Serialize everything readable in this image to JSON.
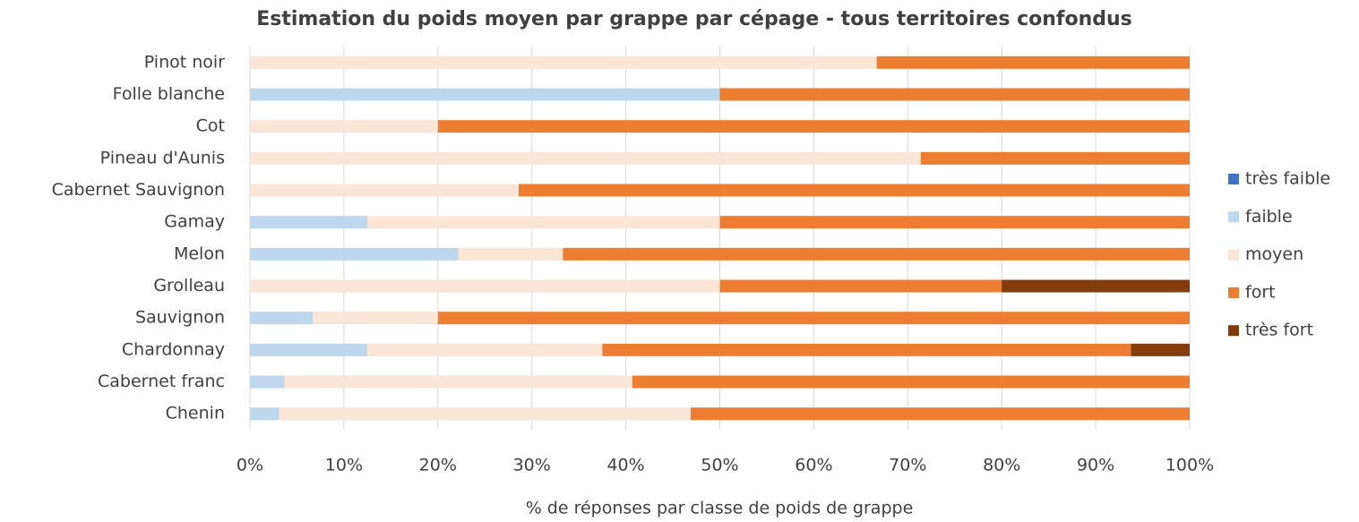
{
  "chart_data": {
    "type": "stacked_bar",
    "orientation": "horizontal",
    "title": "Estimation du poids moyen par grappe par cépage - tous territoires confondus",
    "xlabel": "% de réponses par classe de poids de grappe",
    "categories": [
      "Pinot noir",
      "Folle blanche",
      "Cot",
      "Pineau d'Aunis",
      "Cabernet Sauvignon",
      "Gamay",
      "Melon",
      "Grolleau",
      "Sauvignon",
      "Chardonnay",
      "Cabernet franc",
      "Chenin"
    ],
    "series": [
      {
        "name": "très faible",
        "color": "#4472c4",
        "values": [
          0,
          0,
          0,
          0,
          0,
          0,
          0,
          0,
          0,
          0,
          0,
          0
        ]
      },
      {
        "name": "faible",
        "color": "#bdd7ee",
        "values": [
          0,
          50,
          0,
          0,
          0,
          12.5,
          22.2,
          0,
          6.7,
          12.5,
          3.7,
          3.1
        ]
      },
      {
        "name": "moyen",
        "color": "#fbe5d6",
        "values": [
          66.7,
          0,
          20,
          71.4,
          28.6,
          37.5,
          11.1,
          50,
          13.3,
          25,
          37,
          43.8
        ]
      },
      {
        "name": "fort",
        "color": "#ed7d31",
        "values": [
          33.3,
          50,
          80,
          28.6,
          71.4,
          50,
          66.7,
          30,
          80,
          56.25,
          59.3,
          53.1
        ]
      },
      {
        "name": "très fort",
        "color": "#843c0c",
        "values": [
          0,
          0,
          0,
          0,
          0,
          0,
          0,
          20,
          0,
          6.25,
          0,
          0
        ]
      }
    ],
    "xlim": [
      0,
      100
    ],
    "xticks": [
      {
        "value": 0,
        "label": "0%"
      },
      {
        "value": 10,
        "label": "10%"
      },
      {
        "value": 20,
        "label": "20%"
      },
      {
        "value": 30,
        "label": "30%"
      },
      {
        "value": 40,
        "label": "40%"
      },
      {
        "value": 50,
        "label": "50%"
      },
      {
        "value": 60,
        "label": "60%"
      },
      {
        "value": 70,
        "label": "70%"
      },
      {
        "value": 80,
        "label": "80%"
      },
      {
        "value": 90,
        "label": "90%"
      },
      {
        "value": 100,
        "label": "100%"
      }
    ],
    "grid": true,
    "legend": "right"
  }
}
